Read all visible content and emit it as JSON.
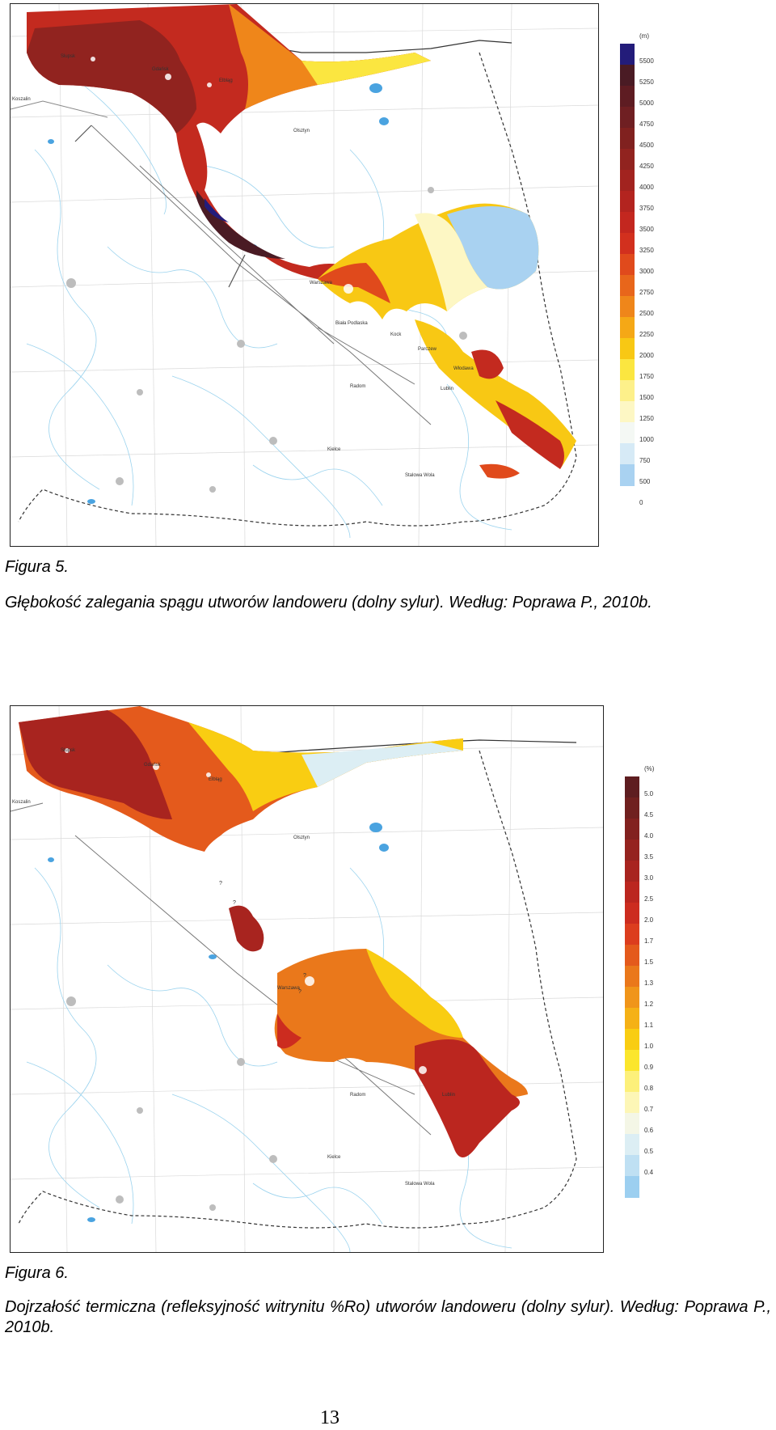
{
  "figure5": {
    "label": "Figura 5.",
    "caption": "Głębokość zalegania  spągu utworów landoweru (dolny sylur). Według: Poprawa P., 2010b.",
    "map_places": [
      "Słupsk",
      "Gdańsk",
      "Elbląg",
      "Koszalin",
      "Olsztyn",
      "Warszawa",
      "Biała Podlaska",
      "Kock",
      "Parczew",
      "Włodawa",
      "Radom",
      "Lublin",
      "Kielce",
      "Stalowa Wola"
    ],
    "legend": {
      "unit": "(m)",
      "colors": [
        "#231c7a",
        "#4a1b24",
        "#5e1c22",
        "#6f1f22",
        "#80211f",
        "#91231f",
        "#a2231f",
        "#b3241f",
        "#c3271f",
        "#d2301e",
        "#e04a1c",
        "#e8661b",
        "#ef861a",
        "#f5a816",
        "#f8c814",
        "#fbe640",
        "#fdf08a",
        "#fdf7c4",
        "#f4f8f4",
        "#d6eaf6",
        "#a9d2f1"
      ],
      "labels": [
        "5500",
        "5250",
        "5000",
        "4750",
        "4500",
        "4250",
        "4000",
        "3750",
        "3500",
        "3250",
        "3000",
        "2750",
        "2500",
        "2250",
        "2000",
        "1750",
        "1500",
        "1250",
        "1000",
        "750",
        "500",
        "0"
      ]
    }
  },
  "figure6": {
    "label": "Figura 6.",
    "caption": "Dojrzałość termiczna (refleksyjność witrynitu %Ro) utworów landoweru (dolny sylur). Według: Poprawa P., 2010b.",
    "map_places": [
      "Słupsk",
      "Gdańsk",
      "Elbląg",
      "Koszalin",
      "Olsztyn",
      "Warszawa",
      "Radom",
      "Lublin",
      "Kielce",
      "Stalowa Wola"
    ],
    "question_marks": [
      "?",
      "?",
      "?",
      "?"
    ],
    "legend": {
      "unit": "(%)",
      "colors": [
        "#5e1d20",
        "#70201f",
        "#82211f",
        "#95231f",
        "#a8241f",
        "#bb261f",
        "#cc2c1f",
        "#dc3d1e",
        "#e45a1c",
        "#ea781b",
        "#f0951a",
        "#f5b116",
        "#f9cd12",
        "#fbe62c",
        "#fdf07a",
        "#fdf6b6",
        "#f4f6e6",
        "#dceef4",
        "#bfe0f3",
        "#9ccff0"
      ],
      "labels": [
        "5.0",
        "4.5",
        "4.0",
        "3.5",
        "3.0",
        "2.5",
        "2.0",
        "1.7",
        "1.5",
        "1.3",
        "1.2",
        "1.1",
        "1.0",
        "0.9",
        "0.8",
        "0.7",
        "0.6",
        "0.5",
        "0.4"
      ]
    }
  },
  "page_number": "13"
}
